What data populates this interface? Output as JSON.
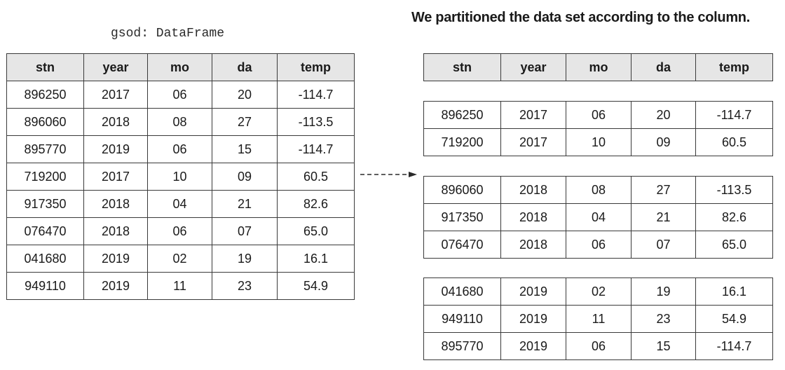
{
  "caption": "We partitioned the data set according to the column.",
  "source_label": "gsod: DataFrame",
  "columns": [
    "stn",
    "year",
    "mo",
    "da",
    "temp"
  ],
  "source_rows": [
    [
      "896250",
      "2017",
      "06",
      "20",
      "-114.7"
    ],
    [
      "896060",
      "2018",
      "08",
      "27",
      "-113.5"
    ],
    [
      "895770",
      "2019",
      "06",
      "15",
      "-114.7"
    ],
    [
      "719200",
      "2017",
      "10",
      "09",
      "60.5"
    ],
    [
      "917350",
      "2018",
      "04",
      "21",
      "82.6"
    ],
    [
      "076470",
      "2018",
      "06",
      "07",
      "65.0"
    ],
    [
      "041680",
      "2019",
      "02",
      "19",
      "16.1"
    ],
    [
      "949110",
      "2019",
      "11",
      "23",
      "54.9"
    ]
  ],
  "partitions": [
    {
      "year": "2017",
      "rows": [
        [
          "896250",
          "2017",
          "06",
          "20",
          "-114.7"
        ],
        [
          "719200",
          "2017",
          "10",
          "09",
          "60.5"
        ]
      ]
    },
    {
      "year": "2018",
      "rows": [
        [
          "896060",
          "2018",
          "08",
          "27",
          "-113.5"
        ],
        [
          "917350",
          "2018",
          "04",
          "21",
          "82.6"
        ],
        [
          "076470",
          "2018",
          "06",
          "07",
          "65.0"
        ]
      ]
    },
    {
      "year": "2019",
      "rows": [
        [
          "041680",
          "2019",
          "02",
          "19",
          "16.1"
        ],
        [
          "949110",
          "2019",
          "11",
          "23",
          "54.9"
        ],
        [
          "895770",
          "2019",
          "06",
          "15",
          "-114.7"
        ]
      ]
    }
  ],
  "colors": {
    "header_bg": "#e6e6e6",
    "border": "#3a3a3a",
    "text": "#1a1a1a"
  },
  "icons": {
    "arrow": "dashed-right-arrow-icon"
  }
}
